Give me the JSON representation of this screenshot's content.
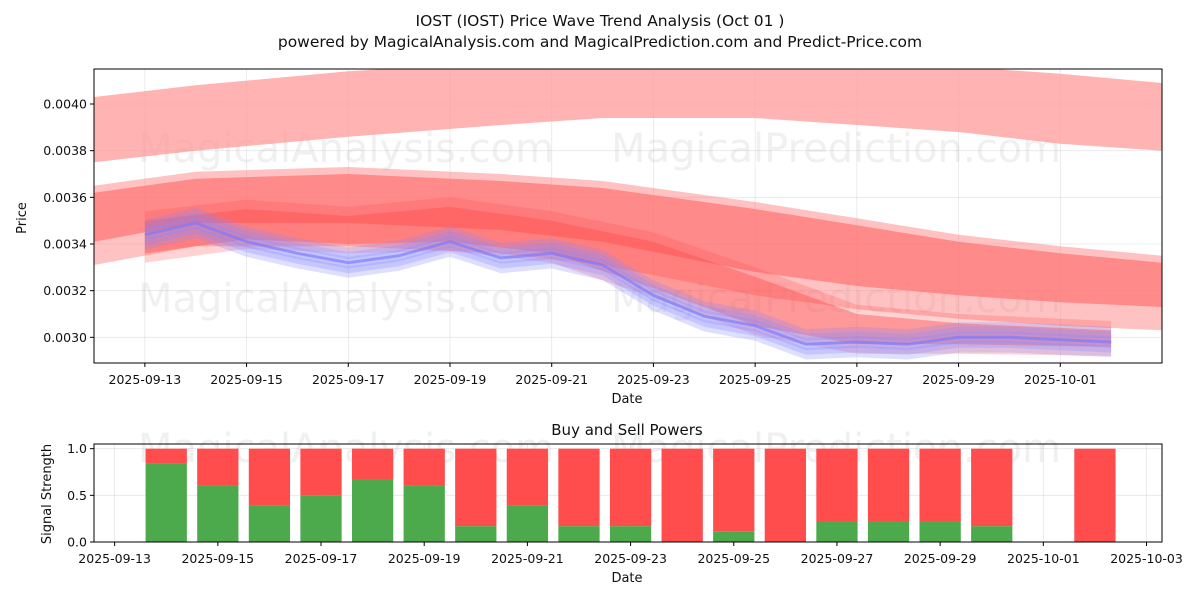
{
  "chart_data": [
    {
      "type": "area",
      "title": "IOST (IOST) Price Wave Trend Analysis (Oct 01 )",
      "subtitle": "powered by MagicalAnalysis.com and MagicalPrediction.com and Predict-Price.com",
      "xlabel": "Date",
      "ylabel": "Price",
      "x_ticks": [
        "2025-09-13",
        "2025-09-15",
        "2025-09-17",
        "2025-09-19",
        "2025-09-21",
        "2025-09-23",
        "2025-09-25",
        "2025-09-27",
        "2025-09-29",
        "2025-10-01"
      ],
      "y_ticks": [
        "0.0030",
        "0.0032",
        "0.0034",
        "0.0036",
        "0.0038",
        "0.0040"
      ],
      "ylim": [
        0.00289,
        0.00415
      ],
      "xlim": [
        "2025-09-12",
        "2025-10-03"
      ],
      "watermarks": [
        "MagicalAnalysis.com",
        "MagicalPrediction.com"
      ],
      "series": [
        {
          "name": "upper-wave",
          "color": "#ff9999",
          "x": [
            "2025-09-12",
            "2025-09-14",
            "2025-09-17",
            "2025-09-20",
            "2025-09-22",
            "2025-09-25",
            "2025-09-27",
            "2025-09-29",
            "2025-10-01",
            "2025-10-03"
          ],
          "upper": [
            0.00403,
            0.00408,
            0.00414,
            0.00418,
            0.0042,
            0.0042,
            0.00418,
            0.00416,
            0.00413,
            0.00409
          ],
          "lower": [
            0.00375,
            0.0038,
            0.00386,
            0.00391,
            0.00394,
            0.00394,
            0.00391,
            0.00388,
            0.00383,
            0.0038
          ]
        },
        {
          "name": "middle-wave",
          "color": "#ff7777",
          "x": [
            "2025-09-12",
            "2025-09-14",
            "2025-09-17",
            "2025-09-20",
            "2025-09-22",
            "2025-09-25",
            "2025-09-27",
            "2025-09-29",
            "2025-10-01",
            "2025-10-03"
          ],
          "upper": [
            0.00362,
            0.00368,
            0.0037,
            0.00367,
            0.00364,
            0.00355,
            0.00348,
            0.00341,
            0.00336,
            0.00332
          ],
          "lower": [
            0.00341,
            0.00349,
            0.00349,
            0.00346,
            0.00341,
            0.00328,
            0.00322,
            0.00318,
            0.00315,
            0.00313
          ]
        },
        {
          "name": "price-band",
          "color": "#ff5050",
          "x": [
            "2025-09-13",
            "2025-09-15",
            "2025-09-17",
            "2025-09-19",
            "2025-09-21",
            "2025-09-23",
            "2025-09-25",
            "2025-09-27",
            "2025-09-29",
            "2025-10-02"
          ],
          "upper": [
            0.0035,
            0.00355,
            0.00352,
            0.00356,
            0.0035,
            0.00341,
            0.00326,
            0.0031,
            0.00306,
            0.00303
          ],
          "lower": [
            0.00336,
            0.00342,
            0.0034,
            0.00341,
            0.00336,
            0.00321,
            0.00305,
            0.00297,
            0.00297,
            0.00296
          ]
        },
        {
          "name": "trend-line",
          "color": "#8888ff",
          "x": [
            "2025-09-13",
            "2025-09-14",
            "2025-09-15",
            "2025-09-16",
            "2025-09-17",
            "2025-09-18",
            "2025-09-19",
            "2025-09-20",
            "2025-09-21",
            "2025-09-22",
            "2025-09-23",
            "2025-09-24",
            "2025-09-25",
            "2025-09-26",
            "2025-09-27",
            "2025-09-28",
            "2025-09-29",
            "2025-09-30",
            "2025-10-01",
            "2025-10-02"
          ],
          "values": [
            0.00344,
            0.00349,
            0.00341,
            0.00336,
            0.00332,
            0.00335,
            0.00341,
            0.00334,
            0.00336,
            0.00331,
            0.00318,
            0.00309,
            0.00305,
            0.00297,
            0.00298,
            0.00297,
            0.003,
            0.003,
            0.00299,
            0.00298
          ]
        }
      ]
    },
    {
      "type": "bar",
      "title": "Buy and Sell Powers",
      "xlabel": "Date",
      "ylabel": "Signal Strength",
      "x_ticks": [
        "2025-09-13",
        "2025-09-15",
        "2025-09-17",
        "2025-09-19",
        "2025-09-21",
        "2025-09-23",
        "2025-09-25",
        "2025-09-27",
        "2025-09-29",
        "2025-10-01",
        "2025-10-03"
      ],
      "y_ticks": [
        "0.0",
        "0.5",
        "1.0"
      ],
      "ylim": [
        0,
        1.05
      ],
      "xlim": [
        "2025-09-12.6",
        "2025-10-03.3"
      ],
      "buy_color": "#4caa4c",
      "sell_color": "#ff4c4c",
      "categories": [
        "2025-09-14",
        "2025-09-15",
        "2025-09-16",
        "2025-09-17",
        "2025-09-18",
        "2025-09-19",
        "2025-09-20",
        "2025-09-21",
        "2025-09-22",
        "2025-09-23",
        "2025-09-24",
        "2025-09-25",
        "2025-09-26",
        "2025-09-27",
        "2025-09-28",
        "2025-09-29",
        "2025-09-30",
        "2025-10-02"
      ],
      "series": [
        {
          "name": "Buy",
          "values": [
            0.84,
            0.61,
            0.39,
            0.5,
            0.67,
            0.61,
            0.17,
            0.39,
            0.17,
            0.17,
            0.0,
            0.11,
            0.0,
            0.22,
            0.22,
            0.22,
            0.17,
            0.0
          ]
        },
        {
          "name": "Sell",
          "values": [
            0.16,
            0.39,
            0.61,
            0.5,
            0.33,
            0.39,
            0.83,
            0.61,
            0.83,
            0.83,
            1.0,
            0.89,
            1.0,
            0.78,
            0.78,
            0.78,
            0.83,
            1.0
          ]
        }
      ]
    }
  ]
}
